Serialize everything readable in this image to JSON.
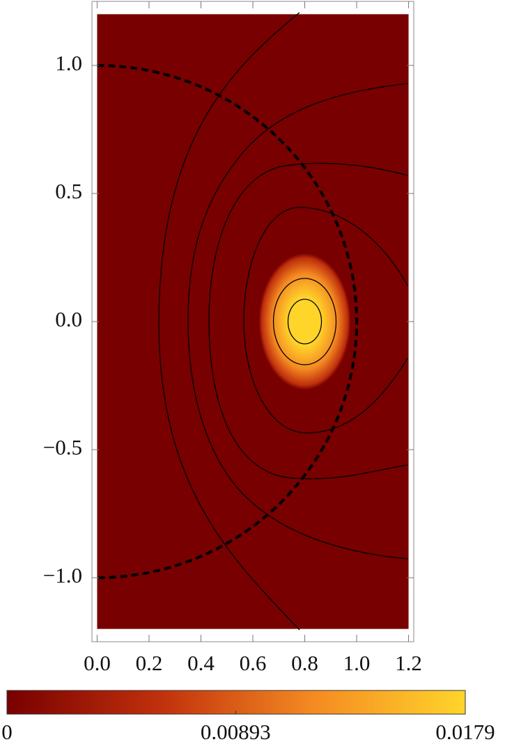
{
  "chart_data": {
    "type": "contour",
    "xlim": [
      -0.02,
      1.22
    ],
    "ylim": [
      -1.25,
      1.25
    ],
    "xticks": [
      {
        "value": 0,
        "label": "0.0"
      },
      {
        "value": 0.2,
        "label": "0.2"
      },
      {
        "value": 0.4,
        "label": "0.4"
      },
      {
        "value": 0.6,
        "label": "0.6"
      },
      {
        "value": 0.8,
        "label": "0.8"
      },
      {
        "value": 1,
        "label": "1.0"
      },
      {
        "value": 1.2,
        "label": "1.2"
      }
    ],
    "yticks": [
      {
        "value": -1,
        "label": "−1.0"
      },
      {
        "value": -0.5,
        "label": "−0.5"
      },
      {
        "value": 0,
        "label": "0.0"
      },
      {
        "value": 0.5,
        "label": "0.5"
      },
      {
        "value": 1,
        "label": "1.0"
      }
    ],
    "region": {
      "x": [
        0,
        1.2
      ],
      "y": [
        -1.2,
        1.2
      ]
    },
    "peak": {
      "x": 0.8,
      "y": 0
    },
    "circle_radius": 1,
    "colorbar": {
      "lim": [
        0,
        0.0179
      ],
      "ticks": [
        0,
        0.00893,
        0.0179
      ]
    },
    "colors": [
      "#780000",
      "#c0300c",
      "#f48a22",
      "#ffd52a"
    ]
  }
}
